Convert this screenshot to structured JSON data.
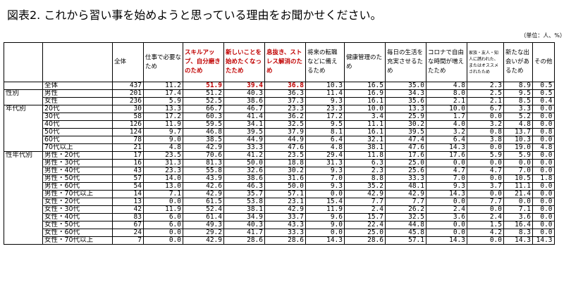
{
  "title": "図表2. これから習い事を始めようと思っている理由をお聞かせください。",
  "unit": "（単位：人、%）",
  "columns": [
    {
      "label": "全体"
    },
    {
      "label": "仕事で必要なため"
    },
    {
      "label": "スキルアップ、自分磨きのため",
      "highlight": true
    },
    {
      "label": "新しいことを始めたくなったため",
      "highlight": true
    },
    {
      "label": "息抜き、ストレス解消のため",
      "highlight": true
    },
    {
      "label": "将来の転職などに備えるため"
    },
    {
      "label": "健康管理のため"
    },
    {
      "label": "毎日の生活を充実させるため"
    },
    {
      "label": "コロナで自由な時間が増えたため"
    },
    {
      "label": "家族・友人・知人に誘われた、またはオススメされたため",
      "small": true
    },
    {
      "label": "新たな出会いがあるため"
    },
    {
      "label": "その他"
    }
  ],
  "rows": [
    {
      "group": "",
      "label": "全体",
      "values": [
        "437",
        "11.2",
        "51.9",
        "39.4",
        "36.8",
        "10.3",
        "16.5",
        "35.0",
        "4.8",
        "2.3",
        "8.9",
        "0.5"
      ],
      "highlight_cols": [
        2,
        3,
        4
      ]
    },
    {
      "group": "性別",
      "label": "男性",
      "values": [
        "201",
        "17.4",
        "51.2",
        "40.3",
        "36.3",
        "11.4",
        "16.9",
        "34.3",
        "8.0",
        "2.5",
        "9.5",
        "0.5"
      ]
    },
    {
      "group": "",
      "label": "女性",
      "values": [
        "236",
        "5.9",
        "52.5",
        "38.6",
        "37.3",
        "9.3",
        "16.1",
        "35.6",
        "2.1",
        "2.1",
        "8.5",
        "0.4"
      ]
    },
    {
      "group": "年代別",
      "label": "20代",
      "values": [
        "30",
        "13.3",
        "66.7",
        "46.7",
        "23.3",
        "23.3",
        "10.0",
        "13.3",
        "10.0",
        "6.7",
        "3.3",
        "0.0"
      ]
    },
    {
      "group": "",
      "label": "30代",
      "values": [
        "58",
        "17.2",
        "60.3",
        "41.4",
        "36.2",
        "17.2",
        "3.4",
        "25.9",
        "1.7",
        "0.0",
        "5.2",
        "0.0"
      ]
    },
    {
      "group": "",
      "label": "40代",
      "values": [
        "126",
        "11.9",
        "59.5",
        "34.1",
        "32.5",
        "9.5",
        "11.1",
        "30.2",
        "4.0",
        "3.2",
        "4.8",
        "0.0"
      ]
    },
    {
      "group": "",
      "label": "50代",
      "values": [
        "124",
        "9.7",
        "46.8",
        "39.5",
        "37.9",
        "8.1",
        "16.1",
        "39.5",
        "3.2",
        "0.8",
        "13.7",
        "0.8"
      ]
    },
    {
      "group": "",
      "label": "60代",
      "values": [
        "78",
        "9.0",
        "38.5",
        "44.9",
        "44.9",
        "6.4",
        "32.1",
        "47.4",
        "6.4",
        "3.8",
        "10.3",
        "0.0"
      ]
    },
    {
      "group": "",
      "label": "70代以上",
      "values": [
        "21",
        "4.8",
        "42.9",
        "33.3",
        "47.6",
        "4.8",
        "38.1",
        "47.6",
        "14.3",
        "0.0",
        "19.0",
        "4.8"
      ]
    },
    {
      "group": "性年代別",
      "label": "男性・20代",
      "values": [
        "17",
        "23.5",
        "70.6",
        "41.2",
        "23.5",
        "29.4",
        "11.8",
        "17.6",
        "17.6",
        "5.9",
        "5.9",
        "0.0"
      ]
    },
    {
      "group": "",
      "label": "男性・30代",
      "values": [
        "16",
        "31.3",
        "81.3",
        "50.0",
        "18.8",
        "31.3",
        "6.3",
        "25.0",
        "0.0",
        "0.0",
        "0.0",
        "0.0"
      ]
    },
    {
      "group": "",
      "label": "男性・40代",
      "values": [
        "43",
        "23.3",
        "55.8",
        "32.6",
        "30.2",
        "9.3",
        "2.3",
        "25.6",
        "4.7",
        "4.7",
        "7.0",
        "0.0"
      ]
    },
    {
      "group": "",
      "label": "男性・50代",
      "values": [
        "57",
        "14.0",
        "43.9",
        "38.6",
        "31.6",
        "7.0",
        "8.8",
        "33.3",
        "7.0",
        "0.0",
        "10.5",
        "1.8"
      ]
    },
    {
      "group": "",
      "label": "男性・60代",
      "values": [
        "54",
        "13.0",
        "42.6",
        "46.3",
        "50.0",
        "9.3",
        "35.2",
        "48.1",
        "9.3",
        "3.7",
        "11.1",
        "0.0"
      ]
    },
    {
      "group": "",
      "label": "男性・70代以上",
      "values": [
        "14",
        "7.1",
        "42.9",
        "35.7",
        "57.1",
        "0.0",
        "42.9",
        "42.9",
        "14.3",
        "0.0",
        "21.4",
        "0.0"
      ]
    },
    {
      "group": "",
      "label": "女性・20代",
      "values": [
        "13",
        "0.0",
        "61.5",
        "53.8",
        "23.1",
        "15.4",
        "7.7",
        "7.7",
        "0.0",
        "7.7",
        "0.0",
        "0.0"
      ]
    },
    {
      "group": "",
      "label": "女性・30代",
      "values": [
        "42",
        "11.9",
        "52.4",
        "38.1",
        "42.9",
        "11.9",
        "2.4",
        "26.2",
        "2.4",
        "0.0",
        "7.1",
        "0.0"
      ]
    },
    {
      "group": "",
      "label": "女性・40代",
      "values": [
        "83",
        "6.0",
        "61.4",
        "34.9",
        "33.7",
        "9.6",
        "15.7",
        "32.5",
        "3.6",
        "2.4",
        "3.6",
        "0.0"
      ]
    },
    {
      "group": "",
      "label": "女性・50代",
      "values": [
        "67",
        "6.0",
        "49.3",
        "40.3",
        "43.3",
        "9.0",
        "22.4",
        "44.8",
        "0.0",
        "1.5",
        "16.4",
        "0.0"
      ]
    },
    {
      "group": "",
      "label": "女性・60代",
      "values": [
        "24",
        "0.0",
        "29.2",
        "41.7",
        "33.3",
        "0.0",
        "25.0",
        "45.8",
        "0.0",
        "4.2",
        "8.3",
        "0.0"
      ]
    },
    {
      "group": "",
      "label": "女性・70代以上",
      "values": [
        "7",
        "0.0",
        "42.9",
        "28.6",
        "28.6",
        "14.3",
        "28.6",
        "57.1",
        "14.3",
        "0.0",
        "14.3",
        "14.3"
      ]
    }
  ]
}
